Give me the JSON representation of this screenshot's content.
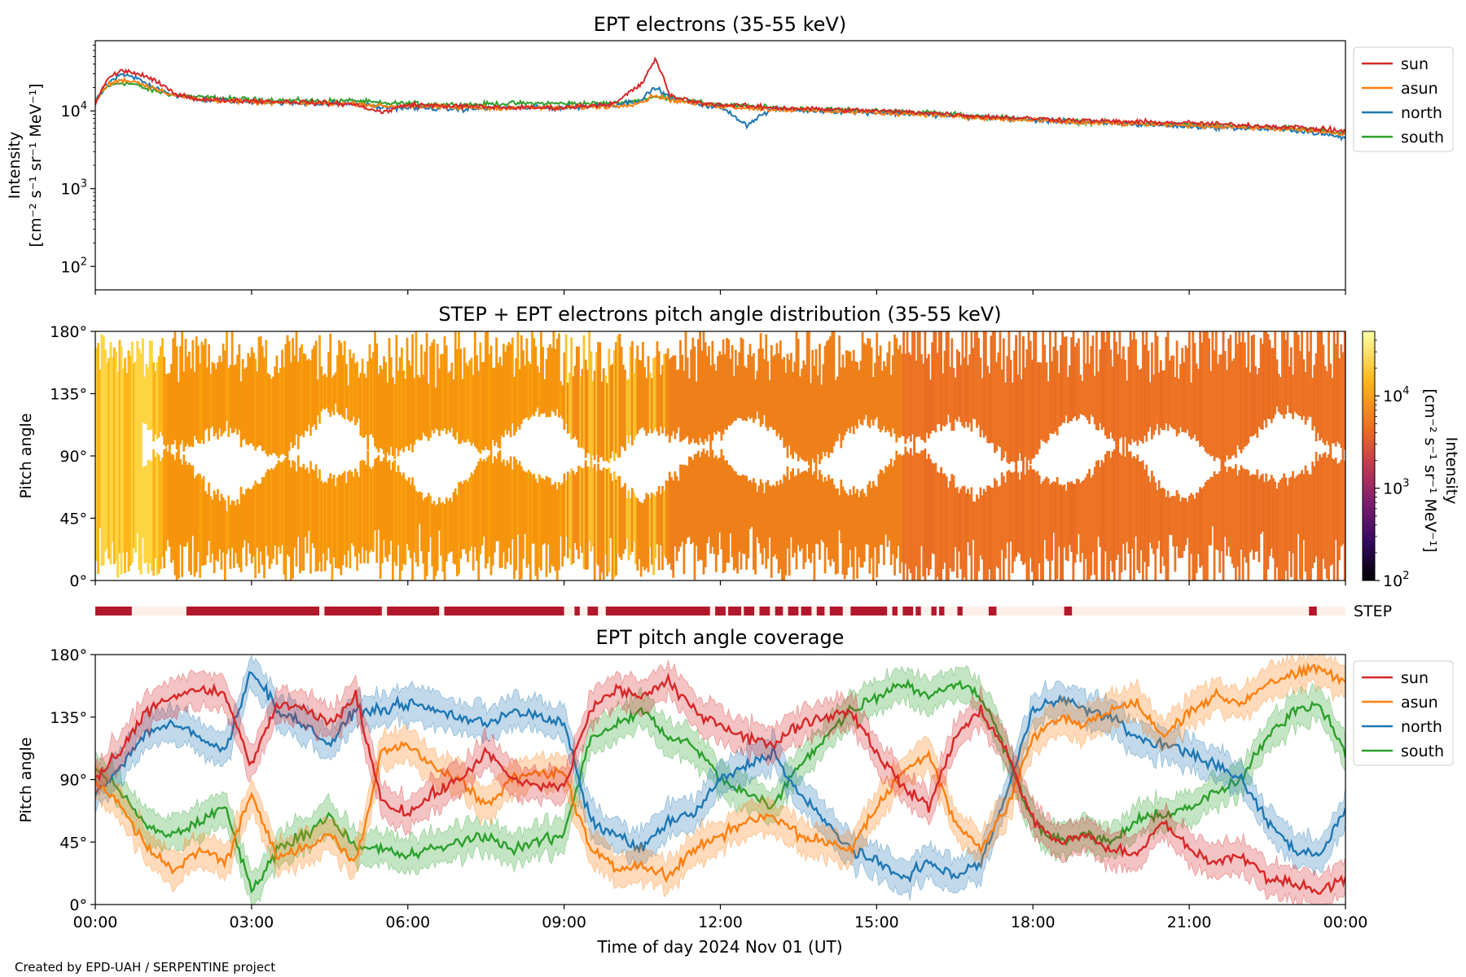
{
  "footer": "Created by EPD-UAH / SERPENTINE project",
  "xaxis": {
    "label": "Time of day 2024 Nov 01 (UT)",
    "ticks": [
      "00:00",
      "03:00",
      "06:00",
      "09:00",
      "12:00",
      "15:00",
      "18:00",
      "21:00",
      "00:00"
    ]
  },
  "chart_data": [
    {
      "type": "line",
      "title": "EPT electrons (35-55 keV)",
      "ylabel_line1": "Intensity",
      "ylabel_line2": "[cm⁻² s⁻¹ sr⁻¹ MeV⁻¹]",
      "yscale": "log",
      "ylim": [
        50,
        80000
      ],
      "yticks": [
        {
          "value": 100,
          "base": "10",
          "exp": "2"
        },
        {
          "value": 1000,
          "base": "10",
          "exp": "3"
        },
        {
          "value": 10000,
          "base": "10",
          "exp": "4"
        }
      ],
      "x_hours": [
        0,
        0.25,
        0.5,
        0.75,
        1,
        1.5,
        2,
        3,
        4,
        5,
        5.5,
        6,
        7,
        8,
        9,
        10,
        10.5,
        10.75,
        11,
        11.5,
        12,
        12.5,
        13,
        14,
        15,
        16,
        17,
        18,
        19,
        20,
        21,
        22,
        23,
        24
      ],
      "legend": "upper-right",
      "series": [
        {
          "name": "sun",
          "color": "#d62728",
          "values": [
            12000,
            26000,
            33000,
            31000,
            27000,
            17000,
            14000,
            13500,
            13000,
            12000,
            9500,
            12000,
            11500,
            11000,
            11000,
            12500,
            22000,
            45000,
            16000,
            13000,
            12000,
            11500,
            11000,
            10500,
            10000,
            9500,
            8500,
            8000,
            7500,
            7200,
            7000,
            6600,
            6200,
            5500
          ]
        },
        {
          "name": "asun",
          "color": "#ff7f0e",
          "values": [
            13000,
            22000,
            25000,
            24000,
            21000,
            16000,
            14000,
            13000,
            12500,
            12500,
            11500,
            11500,
            11000,
            11000,
            11000,
            11500,
            13000,
            16000,
            14000,
            12500,
            11500,
            11000,
            10500,
            10000,
            9500,
            9000,
            8000,
            7500,
            7000,
            6800,
            6500,
            6200,
            5800,
            5000
          ]
        },
        {
          "name": "north",
          "color": "#1f77b4",
          "values": [
            12500,
            23000,
            29000,
            27000,
            22000,
            16000,
            14000,
            13000,
            12500,
            12500,
            11000,
            11000,
            10500,
            11000,
            11000,
            12000,
            14000,
            20000,
            15000,
            12500,
            11000,
            6500,
            10500,
            10000,
            9500,
            9000,
            8200,
            7600,
            7100,
            6700,
            6300,
            6000,
            5700,
            4500
          ]
        },
        {
          "name": "south",
          "color": "#2ca02c",
          "values": [
            13000,
            21000,
            23000,
            22000,
            19000,
            16000,
            15000,
            14000,
            13500,
            13500,
            12500,
            12500,
            12000,
            12500,
            12500,
            12500,
            14000,
            15000,
            15000,
            13000,
            12000,
            11500,
            11000,
            10500,
            10000,
            9500,
            8500,
            7800,
            7200,
            6900,
            6600,
            6300,
            5900,
            5200
          ]
        }
      ]
    },
    {
      "type": "heatmap",
      "title": "STEP + EPT electrons pitch angle distribution (35-55 keV)",
      "ylabel": "Pitch angle",
      "ylim": [
        0,
        180
      ],
      "yticks": [
        "0°",
        "45°",
        "90°",
        "135°",
        "180°"
      ],
      "colorscale": "inferno-like",
      "colorbar": {
        "label_line1": "Intensity",
        "label_line2": "[cm⁻² s⁻¹ sr⁻¹ MeV⁻¹]",
        "scale": "log",
        "range": [
          100,
          50000
        ],
        "ticks": [
          {
            "value": 100,
            "base": "10",
            "exp": "2"
          },
          {
            "value": 1000,
            "base": "10",
            "exp": "3"
          },
          {
            "value": 10000,
            "base": "10",
            "exp": "4"
          }
        ]
      }
    },
    {
      "type": "table",
      "label": "STEP",
      "color_on": "#b2182b",
      "color_off": "#fdf0ea",
      "intervals_hours": [
        [
          0,
          0.7
        ],
        [
          1.75,
          4.3
        ],
        [
          4.4,
          5.5
        ],
        [
          5.6,
          6.6
        ],
        [
          6.7,
          9.0
        ],
        [
          9.2,
          9.3
        ],
        [
          9.45,
          9.65
        ],
        [
          9.8,
          11.8
        ],
        [
          11.9,
          12.1
        ],
        [
          12.15,
          12.4
        ],
        [
          12.45,
          12.65
        ],
        [
          12.75,
          12.95
        ],
        [
          13.05,
          13.2
        ],
        [
          13.3,
          13.5
        ],
        [
          13.55,
          13.75
        ],
        [
          13.85,
          14.0
        ],
        [
          14.1,
          14.35
        ],
        [
          14.5,
          15.2
        ],
        [
          15.3,
          15.4
        ],
        [
          15.5,
          15.7
        ],
        [
          15.75,
          15.85
        ],
        [
          16.05,
          16.15
        ],
        [
          16.2,
          16.3
        ],
        [
          16.55,
          16.65
        ],
        [
          17.15,
          17.3
        ],
        [
          18.6,
          18.75
        ],
        [
          23.3,
          23.45
        ]
      ]
    },
    {
      "type": "line",
      "title": "EPT pitch angle coverage",
      "ylabel": "Pitch angle",
      "ylim": [
        0,
        180
      ],
      "yticks": [
        "0°",
        "45°",
        "90°",
        "135°",
        "180°"
      ],
      "legend": "upper-right",
      "band_halfwidth_deg": 12,
      "x_hours": [
        0,
        0.5,
        1,
        1.5,
        2,
        2.5,
        3,
        3.5,
        4,
        4.5,
        5,
        5.5,
        6,
        6.5,
        7,
        7.5,
        8,
        8.5,
        9,
        9.5,
        10,
        10.5,
        11,
        11.5,
        12,
        12.5,
        13,
        13.5,
        14,
        14.5,
        15,
        15.5,
        16,
        16.5,
        17,
        17.5,
        18,
        18.5,
        19,
        19.5,
        20,
        20.5,
        21,
        21.5,
        22,
        22.5,
        23,
        23.5,
        24
      ],
      "series": [
        {
          "name": "sun",
          "color": "#d62728",
          "values": [
            90,
            110,
            140,
            150,
            155,
            150,
            100,
            145,
            140,
            130,
            150,
            75,
            65,
            80,
            90,
            110,
            90,
            85,
            85,
            140,
            155,
            150,
            160,
            140,
            130,
            120,
            115,
            130,
            135,
            140,
            110,
            85,
            70,
            120,
            140,
            110,
            60,
            45,
            50,
            40,
            35,
            60,
            40,
            30,
            35,
            20,
            15,
            10,
            20
          ]
        },
        {
          "name": "asun",
          "color": "#ff7f0e",
          "values": [
            90,
            70,
            40,
            25,
            40,
            30,
            80,
            35,
            40,
            50,
            30,
            110,
            115,
            100,
            90,
            70,
            90,
            95,
            95,
            40,
            25,
            30,
            20,
            40,
            50,
            60,
            65,
            50,
            45,
            40,
            70,
            95,
            110,
            60,
            40,
            70,
            120,
            135,
            130,
            140,
            145,
            120,
            140,
            150,
            145,
            160,
            165,
            170,
            160
          ]
        },
        {
          "name": "north",
          "color": "#1f77b4",
          "values": [
            80,
            100,
            125,
            130,
            120,
            110,
            170,
            140,
            130,
            115,
            140,
            140,
            145,
            140,
            135,
            130,
            140,
            135,
            130,
            60,
            50,
            40,
            60,
            65,
            90,
            100,
            110,
            80,
            60,
            40,
            30,
            20,
            30,
            20,
            30,
            80,
            140,
            150,
            140,
            135,
            120,
            115,
            110,
            100,
            90,
            60,
            40,
            35,
            70
          ]
        },
        {
          "name": "south",
          "color": "#2ca02c",
          "values": [
            100,
            80,
            55,
            50,
            60,
            70,
            10,
            40,
            50,
            65,
            40,
            40,
            35,
            40,
            45,
            50,
            40,
            45,
            50,
            120,
            130,
            140,
            120,
            115,
            90,
            80,
            70,
            100,
            120,
            140,
            150,
            160,
            150,
            160,
            150,
            110,
            60,
            45,
            50,
            45,
            60,
            65,
            70,
            80,
            90,
            120,
            140,
            145,
            110
          ]
        }
      ]
    }
  ]
}
